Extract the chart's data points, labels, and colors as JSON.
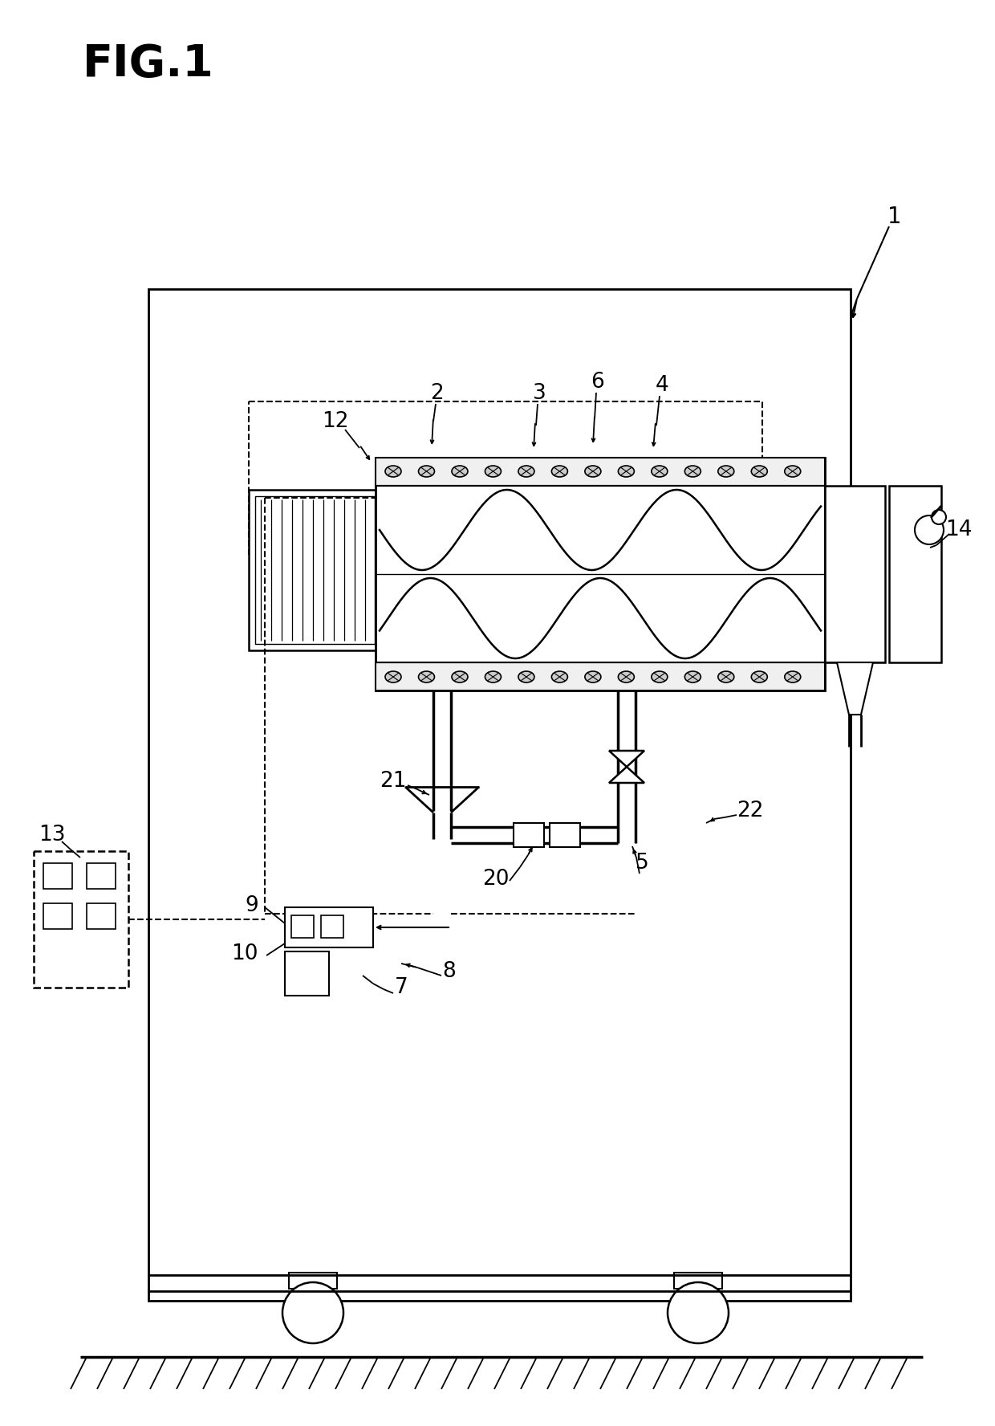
{
  "title": "FIG.1",
  "bg_color": "#ffffff",
  "line_color": "#000000",
  "fig_width": 12.4,
  "fig_height": 17.76
}
